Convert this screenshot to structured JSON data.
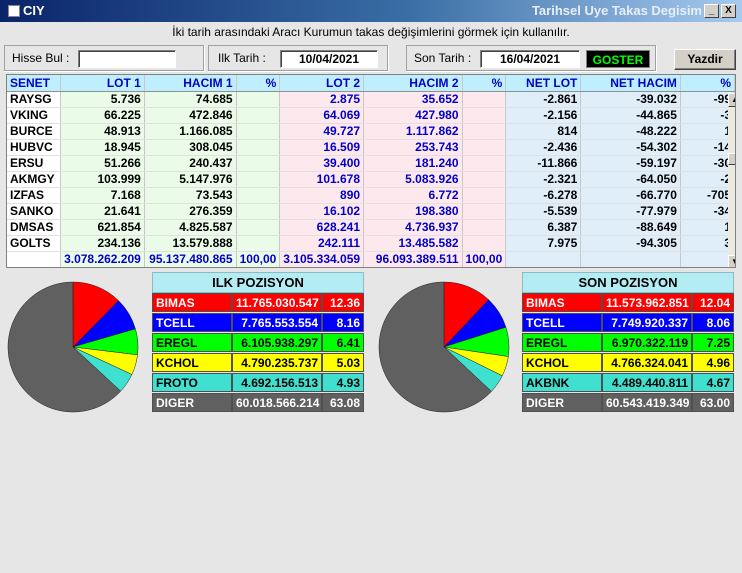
{
  "window": {
    "app_name": "CIY",
    "caption": "Tarihsel Uye Takas Degisim",
    "minimize": "_",
    "close": "X"
  },
  "instruction": "İki tarih arasındaki  Aracı Kurumun takas değişimlerini görmek için kullanılır.",
  "toolbar": {
    "hisse_label": "Hisse Bul :",
    "hisse_value": "",
    "ilk_label": "Ilk Tarih :",
    "ilk_value": "10/04/2021",
    "son_label": "Son Tarih :",
    "son_value": "16/04/2021",
    "goster": "GOSTER",
    "yazdir": "Yazdir"
  },
  "grid": {
    "headers": [
      "SENET",
      "LOT 1",
      "HACIM 1",
      "%",
      "LOT 2",
      "HACIM 2",
      "%",
      "NET LOT",
      "NET HACIM",
      "%"
    ],
    "rows": [
      [
        "RAYSG",
        "5.736",
        "74.685",
        "",
        "2.875",
        "35.652",
        "",
        "-2.861",
        "-39.032",
        "-99"
      ],
      [
        "VKING",
        "66.225",
        "472.846",
        "",
        "64.069",
        "427.980",
        "",
        "-2.156",
        "-44.865",
        "-3"
      ],
      [
        "BURCE",
        "48.913",
        "1.166.085",
        "",
        "49.727",
        "1.117.862",
        "",
        "814",
        "-48.222",
        "1"
      ],
      [
        "HUBVC",
        "18.945",
        "308.045",
        "",
        "16.509",
        "253.743",
        "",
        "-2.436",
        "-54.302",
        "-14"
      ],
      [
        "ERSU",
        "51.266",
        "240.437",
        "",
        "39.400",
        "181.240",
        "",
        "-11.866",
        "-59.197",
        "-30"
      ],
      [
        "AKMGY",
        "103.999",
        "5.147.976",
        "",
        "101.678",
        "5.083.926",
        "",
        "-2.321",
        "-64.050",
        "-2"
      ],
      [
        "IZFAS",
        "7.168",
        "73.543",
        "",
        "890",
        "6.772",
        "",
        "-6.278",
        "-66.770",
        "-705"
      ],
      [
        "SANKO",
        "21.641",
        "276.359",
        "",
        "16.102",
        "198.380",
        "",
        "-5.539",
        "-77.979",
        "-34"
      ],
      [
        "DMSAS",
        "621.854",
        "4.825.587",
        "",
        "628.241",
        "4.736.937",
        "",
        "6.387",
        "-88.649",
        "1"
      ],
      [
        "GOLTS",
        "234.136",
        "13.579.888",
        "",
        "242.111",
        "13.485.582",
        "",
        "7.975",
        "-94.305",
        "3"
      ]
    ],
    "totals": [
      "",
      "3.078.262.209",
      "95.137.480.865",
      "100,00",
      "3.105.334.059",
      "96.093.389.511",
      "100,00",
      "",
      "",
      ""
    ]
  },
  "ilk_pozisyon": {
    "title": "ILK POZISYON",
    "items": [
      {
        "code": "BIMAS",
        "value": "11.765.030.547",
        "pct": "12.36",
        "bg": "#ff0000",
        "fg": "#ffffff"
      },
      {
        "code": "TCELL",
        "value": "7.765.553.554",
        "pct": "8.16",
        "bg": "#0000ff",
        "fg": "#ffffff"
      },
      {
        "code": "EREGL",
        "value": "6.105.938.297",
        "pct": "6.41",
        "bg": "#00ff00",
        "fg": "#000000"
      },
      {
        "code": "KCHOL",
        "value": "4.790.235.737",
        "pct": "5.03",
        "bg": "#ffff00",
        "fg": "#000000"
      },
      {
        "code": "FROTO",
        "value": "4.692.156.513",
        "pct": "4.93",
        "bg": "#40e0d0",
        "fg": "#000000"
      },
      {
        "code": "DIGER",
        "value": "60.018.566.214",
        "pct": "63.08",
        "bg": "#606060",
        "fg": "#ffffff"
      }
    ]
  },
  "son_pozisyon": {
    "title": "SON POZISYON",
    "items": [
      {
        "code": "BIMAS",
        "value": "11.573.962.851",
        "pct": "12.04",
        "bg": "#ff0000",
        "fg": "#ffffff"
      },
      {
        "code": "TCELL",
        "value": "7.749.920.337",
        "pct": "8.06",
        "bg": "#0000ff",
        "fg": "#ffffff"
      },
      {
        "code": "EREGL",
        "value": "6.970.322.119",
        "pct": "7.25",
        "bg": "#00ff00",
        "fg": "#000000"
      },
      {
        "code": "KCHOL",
        "value": "4.766.324.041",
        "pct": "4.96",
        "bg": "#ffff00",
        "fg": "#000000"
      },
      {
        "code": "AKBNK",
        "value": "4.489.440.811",
        "pct": "4.67",
        "bg": "#40e0d0",
        "fg": "#000000"
      },
      {
        "code": "DIGER",
        "value": "60.543.419.349",
        "pct": "63.00",
        "bg": "#606060",
        "fg": "#ffffff"
      }
    ]
  },
  "icons": {
    "window": "app-window-icon",
    "scroll_up": "scroll-up-arrow-icon",
    "scroll_down": "scroll-down-arrow-icon"
  }
}
